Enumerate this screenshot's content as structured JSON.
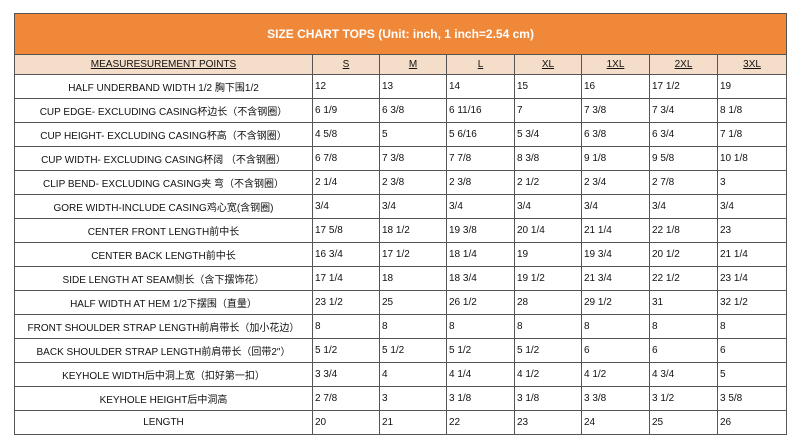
{
  "title": "SIZE CHART  TOPS (Unit: inch, 1 inch=2.54 cm)",
  "header": {
    "points": "MEASURESUREMENT POINTS",
    "sizes": [
      "S",
      "M",
      "L",
      "XL",
      "1XL",
      "2XL",
      "3XL"
    ]
  },
  "rows": [
    {
      "label": "HALF UNDERBAND WIDTH 1/2 胸下围1/2",
      "values": [
        "12",
        "13",
        "14",
        "15",
        "16",
        "17 1/2",
        "19"
      ]
    },
    {
      "label": "CUP EDGE- EXCLUDING CASING杯边长（不含钢圈）",
      "values": [
        "6 1/9",
        "6 3/8",
        "6 11/16",
        "7",
        "7 3/8",
        "7 3/4",
        "8 1/8"
      ]
    },
    {
      "label": "CUP HEIGHT- EXCLUDING CASING杯高（不含钢圈）",
      "values": [
        "4 5/8",
        "5",
        "5  6/16",
        "5 3/4",
        "6 3/8",
        "6 3/4",
        "7 1/8"
      ]
    },
    {
      "label": "CUP WIDTH- EXCLUDING CASING杯阔 （不含钢圈）",
      "values": [
        "6 7/8",
        "7 3/8",
        "7 7/8",
        "8 3/8",
        "9 1/8",
        "9 5/8",
        "10 1/8"
      ]
    },
    {
      "label": "CLIP BEND- EXCLUDING CASING夹  弯（不含钢圈）",
      "values": [
        "2 1/4",
        "2 3/8",
        "2 3/8",
        "2 1/2",
        "2 3/4",
        "2 7/8",
        "3"
      ]
    },
    {
      "label": "GORE WIDTH-INCLUDE CASING鸡心宽(含钢圈)",
      "values": [
        "3/4",
        "3/4",
        "3/4",
        "3/4",
        "3/4",
        "3/4",
        "3/4"
      ]
    },
    {
      "label": "CENTER FRONT LENGTH前中长",
      "values": [
        "17 5/8",
        "18 1/2",
        "19 3/8",
        "20 1/4",
        "21 1/4",
        "22 1/8",
        "23"
      ]
    },
    {
      "label": "CENTER BACK LENGTH前中长",
      "values": [
        "16 3/4",
        "17 1/2",
        "18 1/4",
        "19",
        "19 3/4",
        "20 1/2",
        "21 1/4"
      ]
    },
    {
      "label": "SIDE LENGTH AT SEAM侧长（含下摆饰花）",
      "values": [
        "17 1/4",
        "18",
        "18 3/4",
        "19 1/2",
        "21 3/4",
        "22 1/2",
        "23 1/4"
      ]
    },
    {
      "label": "HALF WIDTH AT HEM 1/2下摆围（直量）",
      "values": [
        "23 1/2",
        "25",
        "26 1/2",
        "28",
        "29 1/2",
        "31",
        "32 1/2"
      ]
    },
    {
      "label": "FRONT SHOULDER STRAP LENGTH前肩带长（加小花边）",
      "values": [
        "8",
        "8",
        "8",
        "8",
        "8",
        "8",
        "8"
      ]
    },
    {
      "label": "BACK SHOULDER STRAP LENGTH前肩带长（回带2\"）",
      "values": [
        "5 1/2",
        "5 1/2",
        "5 1/2",
        "5 1/2",
        "6",
        "6",
        "6"
      ]
    },
    {
      "label": "KEYHOLE WIDTH后中洞上宽（扣好第一扣）",
      "values": [
        "3 3/4",
        "4",
        "4 1/4",
        "4 1/2",
        "4 1/2",
        "4 3/4",
        "5"
      ]
    },
    {
      "label": "KEYHOLE HEIGHT后中洞高",
      "values": [
        "2 7/8",
        "3",
        "3 1/8",
        "3 1/8",
        "3 3/8",
        "3 1/2",
        "3 5/8"
      ]
    },
    {
      "label": "LENGTH",
      "values": [
        "20",
        "21",
        "22",
        "23",
        "24",
        "25",
        "26"
      ]
    }
  ],
  "colors": {
    "title_bg": "#f0883a",
    "header_bg": "#f4dec9",
    "border": "#555555"
  }
}
